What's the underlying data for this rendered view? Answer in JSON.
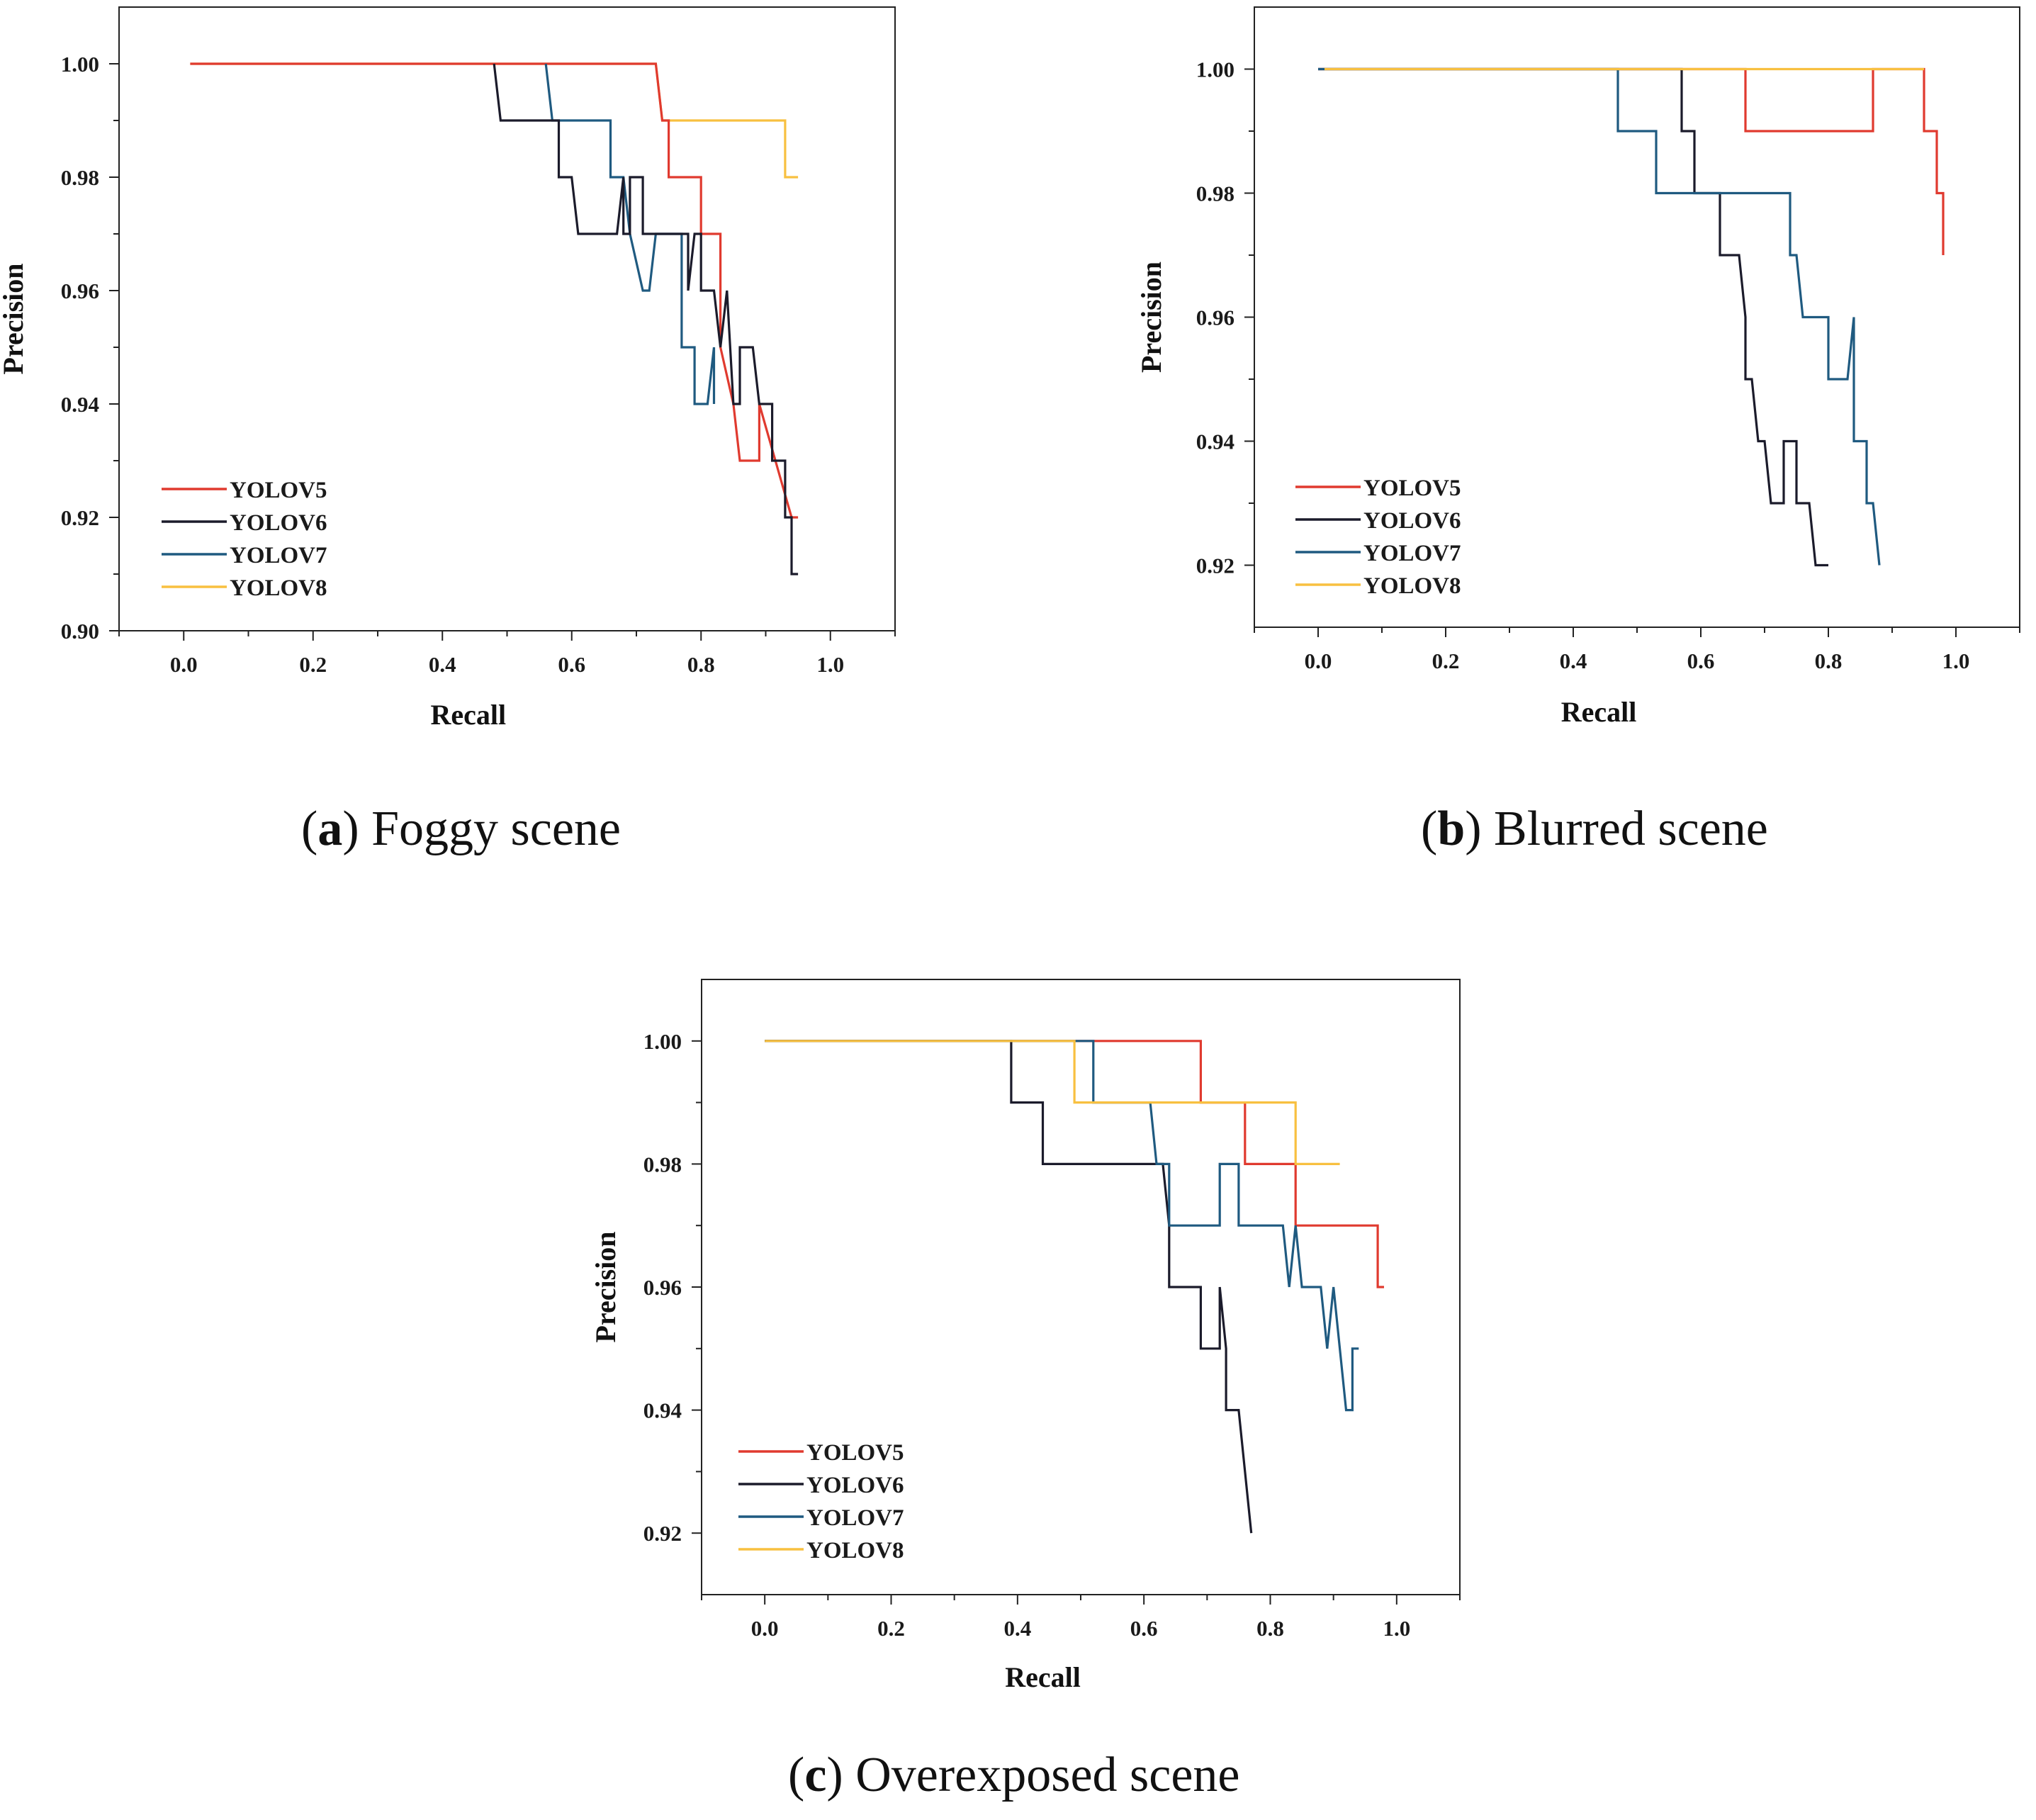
{
  "colors": {
    "YOLOV5": "#e03a2f",
    "YOLOV6": "#1b1b2b",
    "YOLOV7": "#1f5a80",
    "YOLOV8": "#f8c040"
  },
  "chart_data": [
    {
      "id": "a",
      "type": "line",
      "caption_letter": "a",
      "caption_text": ") Foggy scene",
      "caption_open": "(",
      "xlabel": "Recall",
      "ylabel": "Precision",
      "xlim": [
        -0.1,
        1.1
      ],
      "ylim": [
        0.9,
        1.01
      ],
      "xticks": [
        0.0,
        0.2,
        0.4,
        0.6,
        0.8,
        1.0
      ],
      "xtick_labels": [
        "0.0",
        "0.2",
        "0.4",
        "0.6",
        "0.8",
        "1.0"
      ],
      "yticks": [
        0.9,
        0.92,
        0.94,
        0.96,
        0.98,
        1.0
      ],
      "ytick_labels": [
        "0.90",
        "0.92",
        "0.94",
        "0.96",
        "0.98",
        "1.00"
      ],
      "legend": [
        "YOLOV5",
        "YOLOV6",
        "YOLOV7",
        "YOLOV8"
      ],
      "legend_position": "bottom-left",
      "series": [
        {
          "name": "YOLOV8",
          "x": [
            0.01,
            0.73,
            0.74,
            0.93,
            0.93,
            0.95
          ],
          "y": [
            1.0,
            1.0,
            0.99,
            0.99,
            0.98,
            0.98
          ]
        },
        {
          "name": "YOLOV5",
          "x": [
            0.01,
            0.73,
            0.74,
            0.75,
            0.75,
            0.8,
            0.8,
            0.83,
            0.83,
            0.85,
            0.86,
            0.89,
            0.89,
            0.94,
            0.95
          ],
          "y": [
            1.0,
            1.0,
            0.99,
            0.99,
            0.98,
            0.98,
            0.97,
            0.97,
            0.95,
            0.94,
            0.93,
            0.93,
            0.94,
            0.92,
            0.92
          ]
        },
        {
          "name": "YOLOV7",
          "x": [
            0.56,
            0.57,
            0.66,
            0.66,
            0.68,
            0.69,
            0.71,
            0.72,
            0.73,
            0.77,
            0.77,
            0.79,
            0.79,
            0.81,
            0.82,
            0.82,
            0.82
          ],
          "y": [
            1.0,
            0.99,
            0.99,
            0.98,
            0.98,
            0.97,
            0.96,
            0.96,
            0.97,
            0.97,
            0.95,
            0.95,
            0.94,
            0.94,
            0.95,
            0.94,
            0.95
          ]
        },
        {
          "name": "YOLOV6",
          "x": [
            0.48,
            0.49,
            0.58,
            0.58,
            0.6,
            0.61,
            0.67,
            0.68,
            0.68,
            0.69,
            0.69,
            0.71,
            0.71,
            0.78,
            0.78,
            0.79,
            0.8,
            0.8,
            0.82,
            0.83,
            0.84,
            0.85,
            0.86,
            0.86,
            0.88,
            0.89,
            0.89,
            0.91,
            0.91,
            0.93,
            0.93,
            0.94,
            0.94,
            0.95
          ],
          "y": [
            1.0,
            0.99,
            0.99,
            0.98,
            0.98,
            0.97,
            0.97,
            0.98,
            0.97,
            0.97,
            0.98,
            0.98,
            0.97,
            0.97,
            0.96,
            0.97,
            0.97,
            0.96,
            0.96,
            0.95,
            0.96,
            0.94,
            0.94,
            0.95,
            0.95,
            0.94,
            0.94,
            0.94,
            0.93,
            0.93,
            0.92,
            0.92,
            0.91,
            0.91
          ]
        }
      ]
    },
    {
      "id": "b",
      "type": "line",
      "caption_letter": "b",
      "caption_text": ") Blurred scene",
      "caption_open": "(",
      "xlabel": "Recall",
      "ylabel": "Precision",
      "xlim": [
        -0.1,
        1.1
      ],
      "ylim": [
        0.91,
        1.01
      ],
      "xticks": [
        0.0,
        0.2,
        0.4,
        0.6,
        0.8,
        1.0
      ],
      "xtick_labels": [
        "0.0",
        "0.2",
        "0.4",
        "0.6",
        "0.8",
        "1.0"
      ],
      "yticks": [
        0.92,
        0.94,
        0.96,
        0.98,
        1.0
      ],
      "ytick_labels": [
        "0.92",
        "0.94",
        "0.96",
        "0.98",
        "1.00"
      ],
      "legend": [
        "YOLOV5",
        "YOLOV6",
        "YOLOV7",
        "YOLOV8"
      ],
      "legend_position": "bottom-left",
      "series": [
        {
          "name": "YOLOV5",
          "x": [
            0.0,
            0.67,
            0.67,
            0.87,
            0.87,
            0.95,
            0.95,
            0.97,
            0.97,
            0.98,
            0.98
          ],
          "y": [
            1.0,
            1.0,
            0.99,
            0.99,
            1.0,
            1.0,
            0.99,
            0.99,
            0.98,
            0.98,
            0.97
          ]
        },
        {
          "name": "YOLOV6",
          "x": [
            0.0,
            0.57,
            0.57,
            0.59,
            0.59,
            0.63,
            0.63,
            0.66,
            0.67,
            0.67,
            0.68,
            0.69,
            0.7,
            0.71,
            0.71,
            0.73,
            0.73,
            0.75,
            0.75,
            0.77,
            0.78,
            0.79,
            0.8
          ],
          "y": [
            1.0,
            1.0,
            0.99,
            0.99,
            0.98,
            0.98,
            0.97,
            0.97,
            0.96,
            0.95,
            0.95,
            0.94,
            0.94,
            0.93,
            0.93,
            0.93,
            0.94,
            0.94,
            0.93,
            0.93,
            0.92,
            0.92,
            0.92
          ]
        },
        {
          "name": "YOLOV7",
          "x": [
            0.0,
            0.47,
            0.47,
            0.53,
            0.53,
            0.74,
            0.74,
            0.75,
            0.76,
            0.8,
            0.8,
            0.83,
            0.84,
            0.84,
            0.86,
            0.86,
            0.87,
            0.88
          ],
          "y": [
            1.0,
            1.0,
            0.99,
            0.99,
            0.98,
            0.98,
            0.97,
            0.97,
            0.96,
            0.96,
            0.95,
            0.95,
            0.96,
            0.94,
            0.94,
            0.93,
            0.93,
            0.92
          ]
        },
        {
          "name": "YOLOV8",
          "x": [
            0.01,
            0.95
          ],
          "y": [
            1.0,
            1.0
          ]
        }
      ]
    },
    {
      "id": "c",
      "type": "line",
      "caption_letter": "c",
      "caption_text": ") Overexposed scene",
      "caption_open": "(",
      "xlabel": "Recall",
      "ylabel": "Precision",
      "xlim": [
        -0.1,
        1.1
      ],
      "ylim": [
        0.91,
        1.01
      ],
      "xticks": [
        0.0,
        0.2,
        0.4,
        0.6,
        0.8,
        1.0
      ],
      "xtick_labels": [
        "0.0",
        "0.2",
        "0.4",
        "0.6",
        "0.8",
        "1.0"
      ],
      "yticks": [
        0.92,
        0.94,
        0.96,
        0.98,
        1.0
      ],
      "ytick_labels": [
        "0.92",
        "0.94",
        "0.96",
        "0.98",
        "1.00"
      ],
      "legend": [
        "YOLOV5",
        "YOLOV6",
        "YOLOV7",
        "YOLOV8"
      ],
      "legend_position": "bottom-left",
      "series": [
        {
          "name": "YOLOV5",
          "x": [
            0.0,
            0.69,
            0.69,
            0.76,
            0.76,
            0.84,
            0.84,
            0.97,
            0.97,
            0.98
          ],
          "y": [
            1.0,
            1.0,
            0.99,
            0.99,
            0.98,
            0.98,
            0.97,
            0.97,
            0.96,
            0.96
          ]
        },
        {
          "name": "YOLOV6",
          "x": [
            0.0,
            0.39,
            0.39,
            0.44,
            0.44,
            0.63,
            0.64,
            0.64,
            0.69,
            0.69,
            0.72,
            0.72,
            0.73,
            0.73,
            0.75,
            0.77
          ],
          "y": [
            1.0,
            1.0,
            0.99,
            0.99,
            0.98,
            0.98,
            0.97,
            0.96,
            0.96,
            0.95,
            0.95,
            0.96,
            0.95,
            0.94,
            0.94,
            0.92
          ]
        },
        {
          "name": "YOLOV7",
          "x": [
            0.0,
            0.52,
            0.52,
            0.61,
            0.62,
            0.64,
            0.64,
            0.72,
            0.72,
            0.75,
            0.75,
            0.82,
            0.83,
            0.84,
            0.85,
            0.88,
            0.89,
            0.9,
            0.91,
            0.92,
            0.93,
            0.93,
            0.94
          ],
          "y": [
            1.0,
            1.0,
            0.99,
            0.99,
            0.98,
            0.98,
            0.97,
            0.97,
            0.98,
            0.98,
            0.97,
            0.97,
            0.96,
            0.97,
            0.96,
            0.96,
            0.95,
            0.96,
            0.95,
            0.94,
            0.94,
            0.95,
            0.95
          ]
        },
        {
          "name": "YOLOV8",
          "x": [
            0.0,
            0.49,
            0.49,
            0.84,
            0.84,
            0.91
          ],
          "y": [
            1.0,
            1.0,
            0.99,
            0.99,
            0.98,
            0.98
          ]
        }
      ]
    }
  ]
}
